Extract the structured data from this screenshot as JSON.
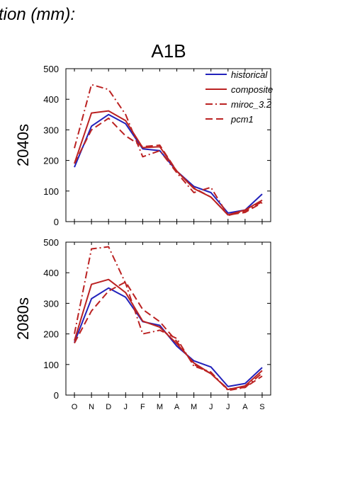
{
  "heading": "tion (mm):",
  "scenario": "A1B",
  "colors": {
    "historical": "#2222bb",
    "models": "#bb2222",
    "axis": "#000000"
  },
  "legend": [
    {
      "label": "historical",
      "color": "#2222bb",
      "dash": "solid"
    },
    {
      "label": "composite",
      "color": "#bb2222",
      "dash": "solid"
    },
    {
      "label": "miroc_3.2",
      "color": "#bb2222",
      "dash": "dashdot"
    },
    {
      "label": "pcm1",
      "color": "#bb2222",
      "dash": "dash"
    }
  ],
  "chart_data": [
    {
      "type": "line",
      "title": "A1B",
      "ylabel": "2040s",
      "categories": [
        "O",
        "N",
        "D",
        "J",
        "F",
        "M",
        "A",
        "M",
        "J",
        "J",
        "A",
        "S"
      ],
      "ylim": [
        0,
        500
      ],
      "yticks": [
        0,
        100,
        200,
        300,
        400,
        500
      ],
      "series": [
        {
          "name": "historical",
          "dash": "solid",
          "values": [
            178,
            312,
            350,
            320,
            238,
            232,
            165,
            115,
            95,
            28,
            38,
            90
          ]
        },
        {
          "name": "composite",
          "dash": "solid",
          "values": [
            190,
            355,
            362,
            330,
            242,
            245,
            165,
            108,
            80,
            22,
            38,
            70
          ]
        },
        {
          "name": "miroc_3.2",
          "dash": "dashdot",
          "values": [
            240,
            448,
            432,
            350,
            212,
            232,
            160,
            95,
            112,
            20,
            35,
            65
          ]
        },
        {
          "name": "pcm1",
          "dash": "dash",
          "values": [
            190,
            300,
            338,
            280,
            245,
            250,
            165,
            110,
            80,
            22,
            30,
            62
          ]
        }
      ]
    },
    {
      "type": "line",
      "title": "",
      "ylabel": "2080s",
      "categories": [
        "O",
        "N",
        "D",
        "J",
        "F",
        "M",
        "A",
        "M",
        "J",
        "J",
        "A",
        "S"
      ],
      "ylim": [
        0,
        500
      ],
      "yticks": [
        0,
        100,
        200,
        300,
        400,
        500
      ],
      "series": [
        {
          "name": "historical",
          "dash": "solid",
          "values": [
            172,
            315,
            350,
            320,
            240,
            228,
            160,
            112,
            92,
            28,
            38,
            90
          ]
        },
        {
          "name": "composite",
          "dash": "solid",
          "values": [
            178,
            362,
            378,
            335,
            242,
            222,
            168,
            105,
            70,
            18,
            30,
            80
          ]
        },
        {
          "name": "miroc_3.2",
          "dash": "dashdot",
          "values": [
            200,
            478,
            485,
            365,
            200,
            212,
            185,
            95,
            75,
            15,
            25,
            72
          ]
        },
        {
          "name": "pcm1",
          "dash": "dash",
          "values": [
            170,
            275,
            340,
            370,
            280,
            240,
            175,
            100,
            70,
            20,
            25,
            62
          ]
        }
      ]
    }
  ]
}
